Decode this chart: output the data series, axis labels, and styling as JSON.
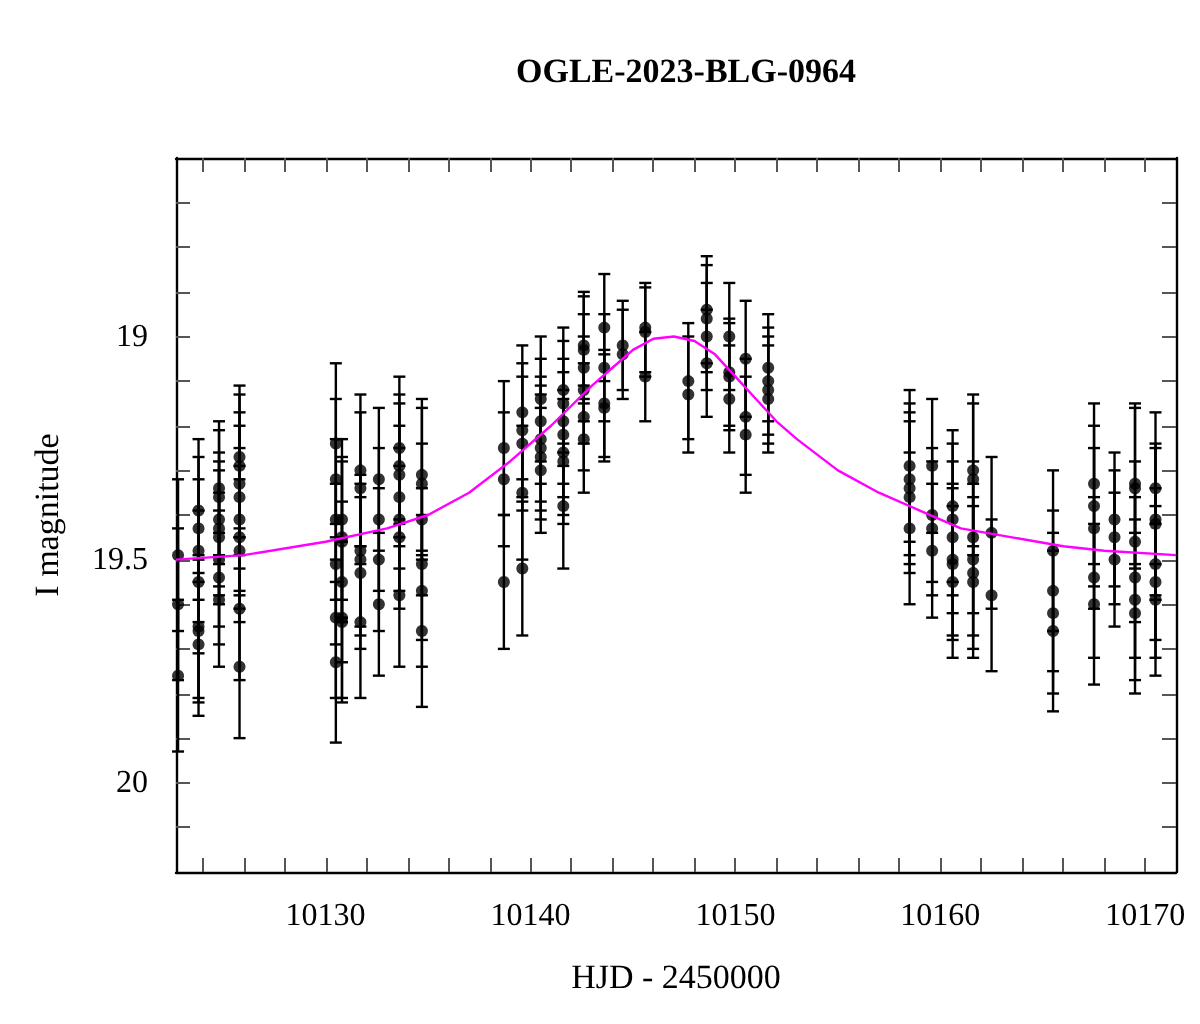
{
  "chart_data": {
    "type": "scatter",
    "title": "OGLE-2023-BLG-0964",
    "xlabel": "HJD - 2450000",
    "ylabel": "I magnitude",
    "grid": false,
    "xlim": [
      10122.7,
      10171.5
    ],
    "ylim": [
      20.2,
      18.6
    ],
    "xticks": [
      {
        "value": 10124,
        "label": null
      },
      {
        "value": 10126,
        "label": null
      },
      {
        "value": 10128,
        "label": null
      },
      10130,
      {
        "value": 10132,
        "label": null
      },
      {
        "value": 10134,
        "label": null
      },
      {
        "value": 10136,
        "label": null
      },
      {
        "value": 10138,
        "label": null
      },
      10140,
      {
        "value": 10142,
        "label": null
      },
      {
        "value": 10144,
        "label": null
      },
      {
        "value": 10146,
        "label": null
      },
      {
        "value": 10148,
        "label": null
      },
      10150,
      {
        "value": 10152,
        "label": null
      },
      {
        "value": 10154,
        "label": null
      },
      {
        "value": 10156,
        "label": null
      },
      {
        "value": 10158,
        "label": null
      },
      10160,
      {
        "value": 10162,
        "label": null
      },
      {
        "value": 10164,
        "label": null
      },
      {
        "value": 10166,
        "label": null
      },
      {
        "value": 10168,
        "label": null
      },
      10170
    ],
    "yticks": [
      {
        "value": 18.7,
        "label": null
      },
      {
        "value": 18.8,
        "label": null
      },
      {
        "value": 18.9,
        "label": null
      },
      19,
      {
        "value": 19.1,
        "label": null
      },
      {
        "value": 19.2,
        "label": null
      },
      {
        "value": 19.3,
        "label": null
      },
      {
        "value": 19.4,
        "label": null
      },
      19.5,
      {
        "value": 19.6,
        "label": null
      },
      {
        "value": 19.7,
        "label": null
      },
      {
        "value": 19.8,
        "label": null
      },
      {
        "value": 19.9,
        "label": null
      },
      20,
      {
        "value": 20.1,
        "label": null
      }
    ],
    "series": [
      {
        "marker": "circle",
        "color": "#000000",
        "x": [
          10122.8,
          10122.8,
          10122.8,
          10123.8,
          10123.8,
          10123.8,
          10123.8,
          10123.8,
          10123.8,
          10123.8,
          10124.8,
          10124.8,
          10124.8,
          10124.8,
          10124.8,
          10124.8,
          10124.8,
          10124.8,
          10125.8,
          10125.8,
          10125.8,
          10125.8,
          10125.8,
          10125.8,
          10125.8,
          10125.8,
          10125.8,
          10130.5,
          10130.5,
          10130.5,
          10130.5,
          10130.5,
          10130.5,
          10130.8,
          10130.8,
          10130.8,
          10130.8,
          10130.8,
          10130.8,
          10131.7,
          10131.7,
          10131.7,
          10131.7,
          10131.7,
          10131.7,
          10132.6,
          10132.6,
          10132.6,
          10132.6,
          10133.6,
          10133.6,
          10133.6,
          10133.6,
          10133.6,
          10133.6,
          10133.6,
          10134.7,
          10134.7,
          10134.7,
          10134.7,
          10134.7,
          10134.7,
          10138.7,
          10138.7,
          10138.7,
          10139.6,
          10139.6,
          10139.6,
          10139.6,
          10139.6,
          10140.5,
          10140.5,
          10140.5,
          10140.5,
          10140.5,
          10140.5,
          10141.6,
          10141.6,
          10141.6,
          10141.6,
          10141.6,
          10141.6,
          10141.6,
          10142.6,
          10142.6,
          10142.6,
          10142.6,
          10142.6,
          10142.6,
          10143.6,
          10143.6,
          10143.6,
          10143.6,
          10144.5,
          10144.5,
          10145.6,
          10145.6,
          10145.6,
          10147.7,
          10147.7,
          10148.6,
          10148.6,
          10148.6,
          10148.6,
          10149.7,
          10149.7,
          10149.7,
          10149.7,
          10150.5,
          10150.5,
          10150.5,
          10151.6,
          10151.6,
          10151.6,
          10151.6,
          10158.5,
          10158.5,
          10158.5,
          10158.5,
          10158.5,
          10159.6,
          10159.6,
          10159.6,
          10159.6,
          10160.6,
          10160.6,
          10160.6,
          10160.6,
          10160.6,
          10160.6,
          10161.6,
          10161.6,
          10161.6,
          10161.6,
          10161.6,
          10161.6,
          10162.5,
          10162.5,
          10165.5,
          10165.5,
          10165.5,
          10165.5,
          10167.5,
          10167.5,
          10167.5,
          10167.5,
          10167.5,
          10168.5,
          10168.5,
          10168.5,
          10169.5,
          10169.5,
          10169.5,
          10169.5,
          10169.5,
          10169.5,
          10170.5,
          10170.5,
          10170.5,
          10170.5,
          10170.5,
          10170.5
        ],
        "values": [
          19.49,
          19.76,
          19.6,
          19.39,
          19.43,
          19.48,
          19.55,
          19.65,
          19.66,
          19.69,
          19.34,
          19.36,
          19.41,
          19.43,
          19.45,
          19.5,
          19.54,
          19.59,
          19.27,
          19.29,
          19.33,
          19.36,
          19.41,
          19.45,
          19.48,
          19.61,
          19.74,
          19.24,
          19.32,
          19.41,
          19.51,
          19.63,
          19.73,
          19.41,
          19.45,
          19.46,
          19.55,
          19.63,
          19.64,
          19.3,
          19.34,
          19.48,
          19.5,
          19.53,
          19.64,
          19.32,
          19.41,
          19.5,
          19.6,
          19.25,
          19.29,
          19.31,
          19.36,
          19.41,
          19.45,
          19.58,
          19.31,
          19.33,
          19.41,
          19.51,
          19.57,
          19.66,
          19.25,
          19.32,
          19.55,
          19.17,
          19.21,
          19.24,
          19.35,
          19.52,
          19.14,
          19.19,
          19.23,
          19.25,
          19.27,
          19.3,
          19.12,
          19.15,
          19.19,
          19.22,
          19.26,
          19.28,
          19.38,
          19.02,
          19.03,
          19.07,
          19.12,
          19.18,
          19.23,
          18.98,
          19.07,
          19.15,
          19.16,
          19.02,
          19.04,
          18.98,
          18.99,
          19.09,
          19.1,
          19.13,
          18.94,
          18.96,
          19,
          19.06,
          19,
          19.08,
          19.09,
          19.14,
          19.05,
          19.18,
          19.22,
          19.07,
          19.1,
          19.12,
          19.14,
          19.29,
          19.32,
          19.34,
          19.36,
          19.43,
          19.29,
          19.4,
          19.43,
          19.48,
          19.38,
          19.41,
          19.45,
          19.5,
          19.51,
          19.55,
          19.3,
          19.32,
          19.45,
          19.5,
          19.53,
          19.55,
          19.44,
          19.58,
          19.48,
          19.57,
          19.62,
          19.66,
          19.33,
          19.38,
          19.43,
          19.54,
          19.6,
          19.41,
          19.45,
          19.5,
          19.33,
          19.34,
          19.46,
          19.54,
          19.59,
          19.62,
          19.34,
          19.41,
          19.42,
          19.51,
          19.55,
          19.59
        ],
        "errors": [
          0.17,
          0.17,
          0.17,
          0.16,
          0.16,
          0.16,
          0.16,
          0.16,
          0.16,
          0.16,
          0.15,
          0.15,
          0.15,
          0.15,
          0.15,
          0.15,
          0.15,
          0.15,
          0.16,
          0.16,
          0.16,
          0.16,
          0.16,
          0.16,
          0.16,
          0.16,
          0.16,
          0.18,
          0.18,
          0.18,
          0.18,
          0.18,
          0.18,
          0.18,
          0.18,
          0.18,
          0.18,
          0.18,
          0.18,
          0.17,
          0.17,
          0.17,
          0.17,
          0.17,
          0.17,
          0.16,
          0.16,
          0.16,
          0.16,
          0.16,
          0.16,
          0.16,
          0.16,
          0.16,
          0.16,
          0.16,
          0.17,
          0.17,
          0.17,
          0.17,
          0.17,
          0.17,
          0.15,
          0.15,
          0.15,
          0.15,
          0.15,
          0.15,
          0.15,
          0.15,
          0.14,
          0.14,
          0.14,
          0.14,
          0.14,
          0.14,
          0.14,
          0.14,
          0.14,
          0.14,
          0.14,
          0.14,
          0.14,
          0.12,
          0.12,
          0.12,
          0.12,
          0.12,
          0.12,
          0.12,
          0.12,
          0.12,
          0.12,
          0.1,
          0.1,
          0.1,
          0.1,
          0.1,
          0.13,
          0.13,
          0.12,
          0.12,
          0.12,
          0.12,
          0.12,
          0.12,
          0.12,
          0.12,
          0.13,
          0.13,
          0.13,
          0.12,
          0.12,
          0.12,
          0.12,
          0.17,
          0.17,
          0.17,
          0.17,
          0.17,
          0.15,
          0.15,
          0.15,
          0.15,
          0.17,
          0.17,
          0.17,
          0.17,
          0.17,
          0.17,
          0.17,
          0.17,
          0.17,
          0.17,
          0.17,
          0.17,
          0.17,
          0.17,
          0.18,
          0.18,
          0.18,
          0.18,
          0.18,
          0.18,
          0.18,
          0.18,
          0.18,
          0.15,
          0.15,
          0.15,
          0.18,
          0.18,
          0.18,
          0.18,
          0.18,
          0.18,
          0.17,
          0.17,
          0.17,
          0.17,
          0.17,
          0.17
        ]
      },
      {
        "type": "line",
        "color": "#ff00ff",
        "x": [
          10122.7,
          10126,
          10130,
          10133,
          10135,
          10137,
          10139,
          10141,
          10143,
          10144,
          10145,
          10146,
          10147,
          10148,
          10149,
          10150,
          10151,
          10152,
          10153,
          10155,
          10157,
          10159,
          10161,
          10163.5,
          10166,
          10168,
          10171.5
        ],
        "values": [
          19.5,
          19.49,
          19.46,
          19.43,
          19.4,
          19.35,
          19.28,
          19.2,
          19.11,
          19.07,
          19.03,
          19.005,
          19,
          19.01,
          19.04,
          19.09,
          19.14,
          19.19,
          19.23,
          19.3,
          19.35,
          19.39,
          19.43,
          19.45,
          19.47,
          19.48,
          19.49
        ]
      }
    ]
  }
}
